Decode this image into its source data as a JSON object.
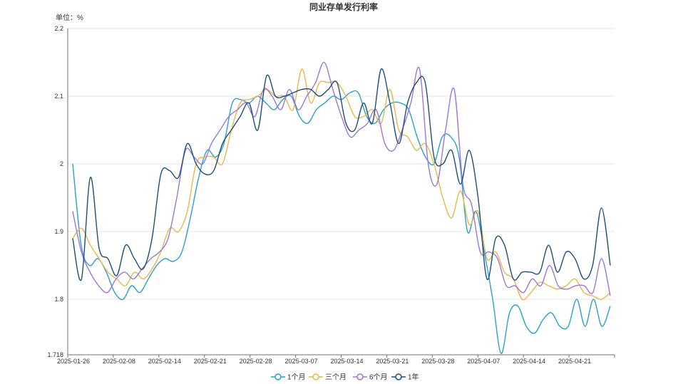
{
  "chart_data": {
    "type": "line",
    "title": "同业存单发行利率",
    "unit_label": "单位：%",
    "ylim": [
      1.718,
      2.2
    ],
    "y_ticks": [
      "2.2",
      "2.1",
      "2",
      "1.9",
      "1.8",
      "1.718"
    ],
    "x_ticks": [
      "2025-01-26",
      "2025-02-08",
      "2025-02-14",
      "2025-02-21",
      "2025-02-28",
      "2025-03-07",
      "2025-03-14",
      "2025-03-21",
      "2025-03-28",
      "2025-04-07",
      "2025-04-14",
      "2025-04-21"
    ],
    "grid": true,
    "legend_position": "bottom-center",
    "series": [
      {
        "name": "1个月",
        "color": "#2a9fd0",
        "values": [
          2.0,
          1.88,
          1.85,
          1.86,
          1.84,
          1.81,
          1.8,
          1.82,
          1.81,
          1.83,
          1.85,
          1.86,
          1.856,
          1.87,
          1.92,
          1.98,
          2.02,
          2.01,
          2.03,
          2.09,
          2.095,
          2.09,
          2.1,
          2.09,
          2.08,
          2.095,
          2.1,
          2.07,
          2.06,
          2.08,
          2.09,
          2.1,
          2.095,
          2.105,
          2.105,
          2.07,
          2.06,
          2.08,
          2.09,
          2.09,
          2.08,
          2.04,
          2.01,
          2.0,
          2.04,
          2.04,
          2.01,
          1.9,
          1.93,
          1.87,
          1.8,
          1.72,
          1.78,
          1.79,
          1.76,
          1.75,
          1.77,
          1.78,
          1.76,
          1.76,
          1.8,
          1.76,
          1.8,
          1.76,
          1.79
        ]
      },
      {
        "name": "三个月",
        "color": "#e8b84a",
        "values": [
          1.89,
          1.905,
          1.88,
          1.86,
          1.84,
          1.83,
          1.82,
          1.84,
          1.83,
          1.845,
          1.87,
          1.905,
          1.9,
          1.93,
          2.0,
          2.01,
          2.01,
          2.0,
          2.05,
          2.09,
          2.095,
          2.1,
          2.11,
          2.1,
          2.1,
          2.08,
          2.14,
          2.09,
          2.12,
          2.12,
          2.12,
          2.1,
          2.07,
          2.07,
          2.08,
          2.06,
          2.11,
          2.05,
          2.04,
          2.02,
          2.03,
          2.0,
          1.95,
          1.92,
          1.96,
          1.91,
          1.93,
          1.86,
          1.87,
          1.84,
          1.83,
          1.8,
          1.81,
          1.825,
          1.82,
          1.815,
          1.82,
          1.83,
          1.81,
          1.805,
          1.8,
          1.81
        ]
      },
      {
        "name": "6个月",
        "color": "#9a77d8",
        "values": [
          1.93,
          1.87,
          1.84,
          1.82,
          1.81,
          1.83,
          1.84,
          1.83,
          1.845,
          1.86,
          1.87,
          1.89,
          1.95,
          2.02,
          2.01,
          2.0,
          2.03,
          2.05,
          2.07,
          2.08,
          2.09,
          2.07,
          2.11,
          2.1,
          2.08,
          2.11,
          2.08,
          2.1,
          2.12,
          2.15,
          2.11,
          2.07,
          2.04,
          2.05,
          2.06,
          2.08,
          2.03,
          2.02,
          2.05,
          2.09,
          2.14,
          2.0,
          1.97,
          2.05,
          2.11,
          1.97,
          1.94,
          1.87,
          1.87,
          1.86,
          1.82,
          1.82,
          1.81,
          1.83,
          1.82,
          1.85,
          1.82,
          1.815,
          1.82,
          1.82,
          1.81,
          1.86,
          1.805
        ]
      },
      {
        "name": "1年",
        "color": "#1d4f78",
        "values": [
          1.89,
          1.83,
          1.98,
          1.875,
          1.86,
          1.835,
          1.88,
          1.86,
          1.845,
          1.89,
          1.985,
          1.99,
          1.98,
          2.03,
          2.0,
          1.985,
          1.99,
          2.03,
          2.05,
          2.07,
          2.09,
          2.05,
          2.13,
          2.1,
          2.1,
          2.105,
          2.11,
          2.11,
          2.1,
          2.11,
          2.12,
          2.06,
          2.05,
          2.09,
          2.06,
          2.14,
          2.09,
          2.03,
          2.09,
          2.12,
          2.12,
          2.01,
          2.0,
          2.02,
          1.97,
          2.02,
          1.95,
          1.83,
          1.89,
          1.88,
          1.83,
          1.84,
          1.84,
          1.84,
          1.88,
          1.84,
          1.87,
          1.86,
          1.83,
          1.85,
          1.935,
          1.85
        ]
      }
    ]
  }
}
